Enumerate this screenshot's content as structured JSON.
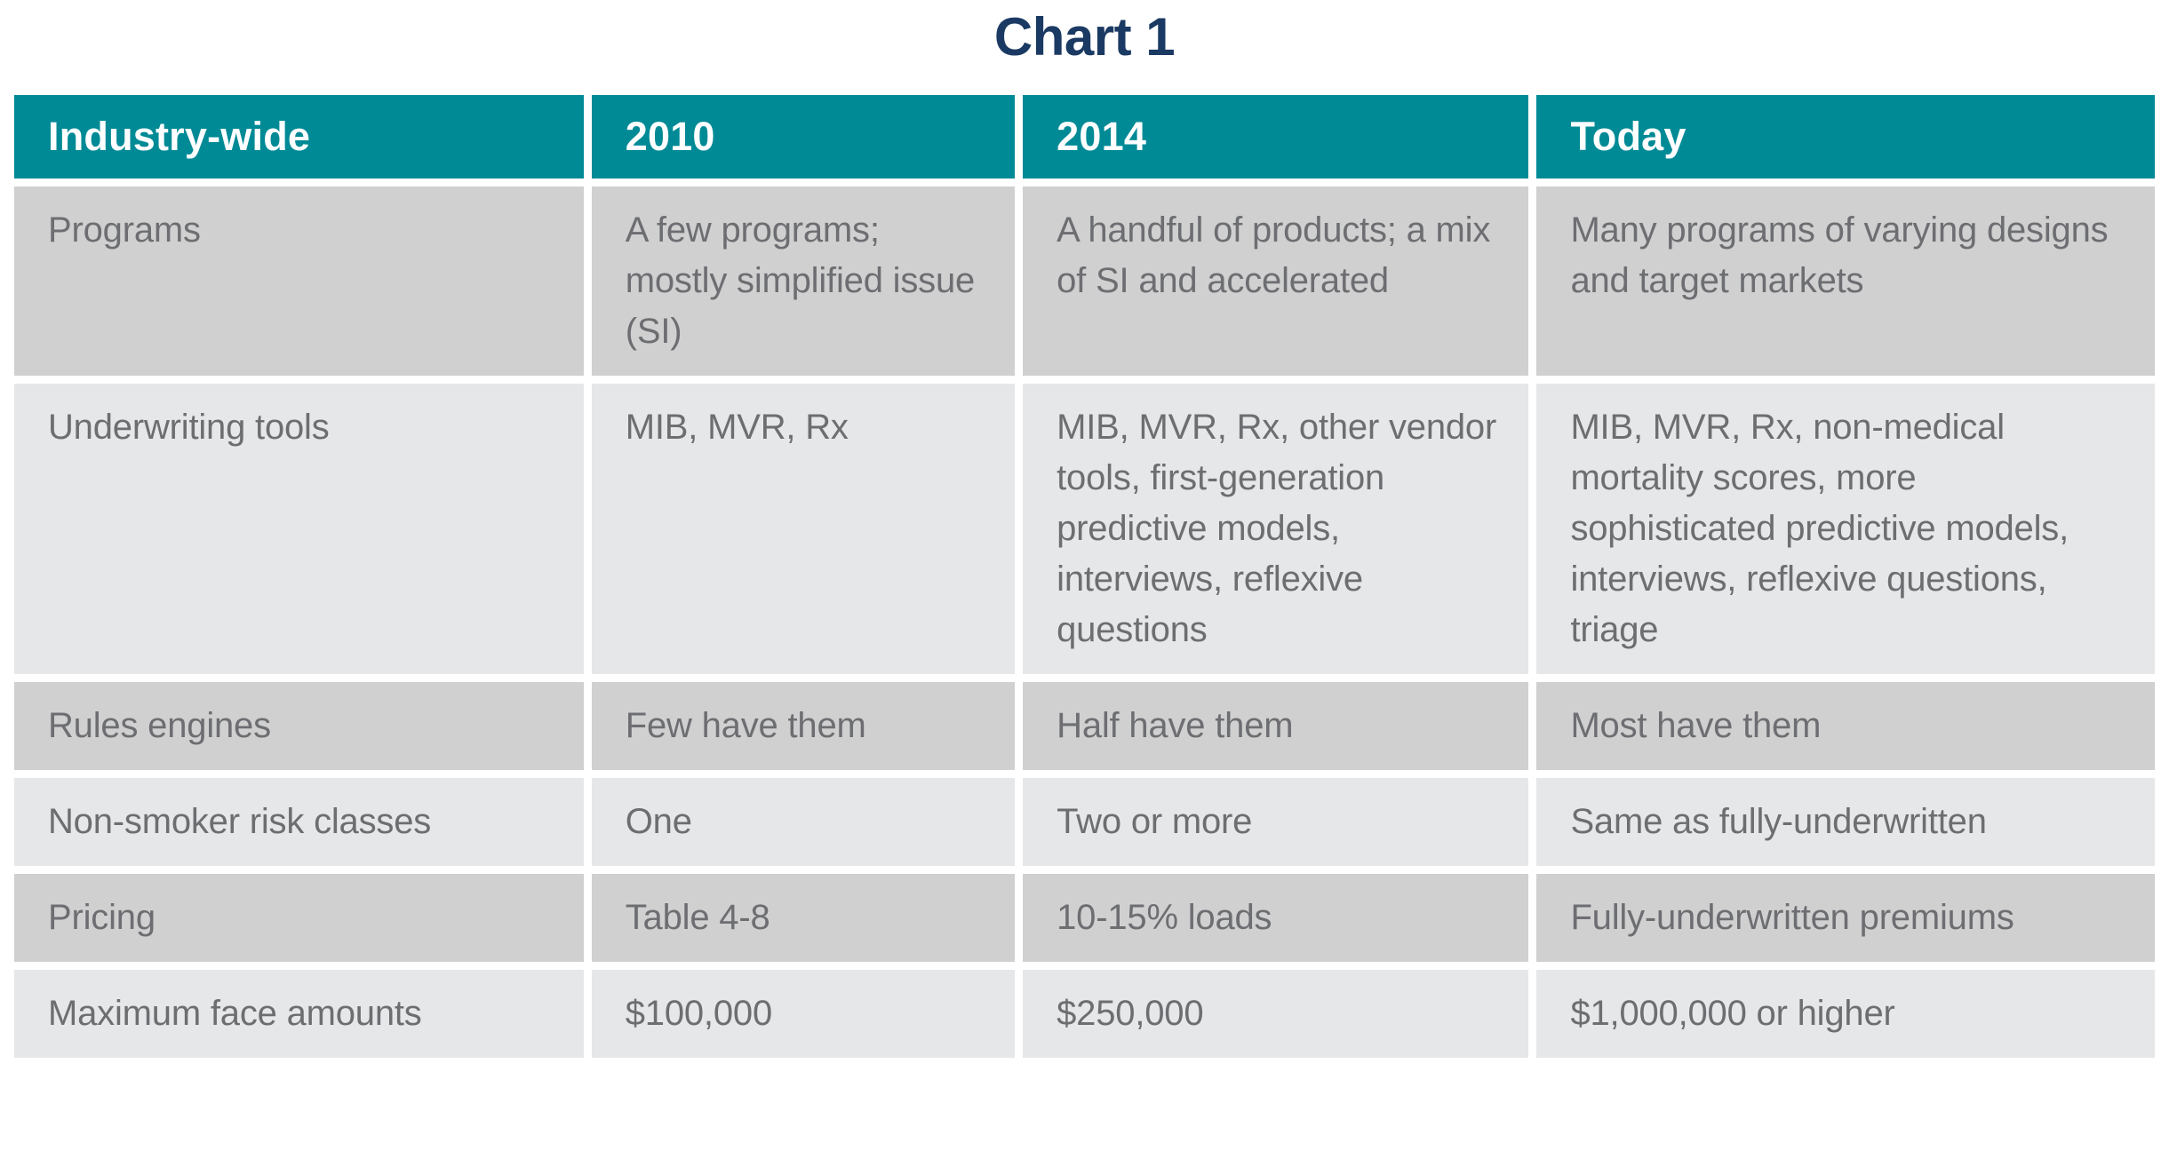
{
  "title": "Chart 1",
  "colors": {
    "header_bg": "#008A96",
    "header_text": "#FFFFFF",
    "row_dark_bg": "#D0D0D1",
    "row_light_bg": "#E6E7E8",
    "body_text": "#6D6E71",
    "title_text": "#1B3A63",
    "page_bg": "#FFFFFF"
  },
  "chart_data": {
    "type": "table",
    "title": "Chart 1",
    "columns": [
      "Industry-wide",
      "2010",
      "2014",
      "Today"
    ],
    "rows": [
      [
        "Programs",
        "A few programs; mostly simplified issue (SI)",
        "A handful of products; a mix of SI and accelerated",
        "Many programs of varying designs and target markets"
      ],
      [
        "Underwriting tools",
        "MIB, MVR, Rx",
        "MIB, MVR, Rx, other vendor tools, first-generation predictive models, interviews, reflexive questions",
        "MIB, MVR, Rx, non-medical mortality scores, more sophisticated predictive models, interviews, reflexive questions, triage"
      ],
      [
        "Rules engines",
        "Few have them",
        "Half have them",
        "Most have them"
      ],
      [
        "Non-smoker risk classes",
        "One",
        "Two or more",
        "Same as fully-underwritten"
      ],
      [
        "Pricing",
        "Table 4-8",
        "10-15% loads",
        "Fully-underwritten premiums"
      ],
      [
        "Maximum face amounts",
        "$100,000",
        "$250,000",
        "$1,000,000 or higher"
      ]
    ]
  }
}
